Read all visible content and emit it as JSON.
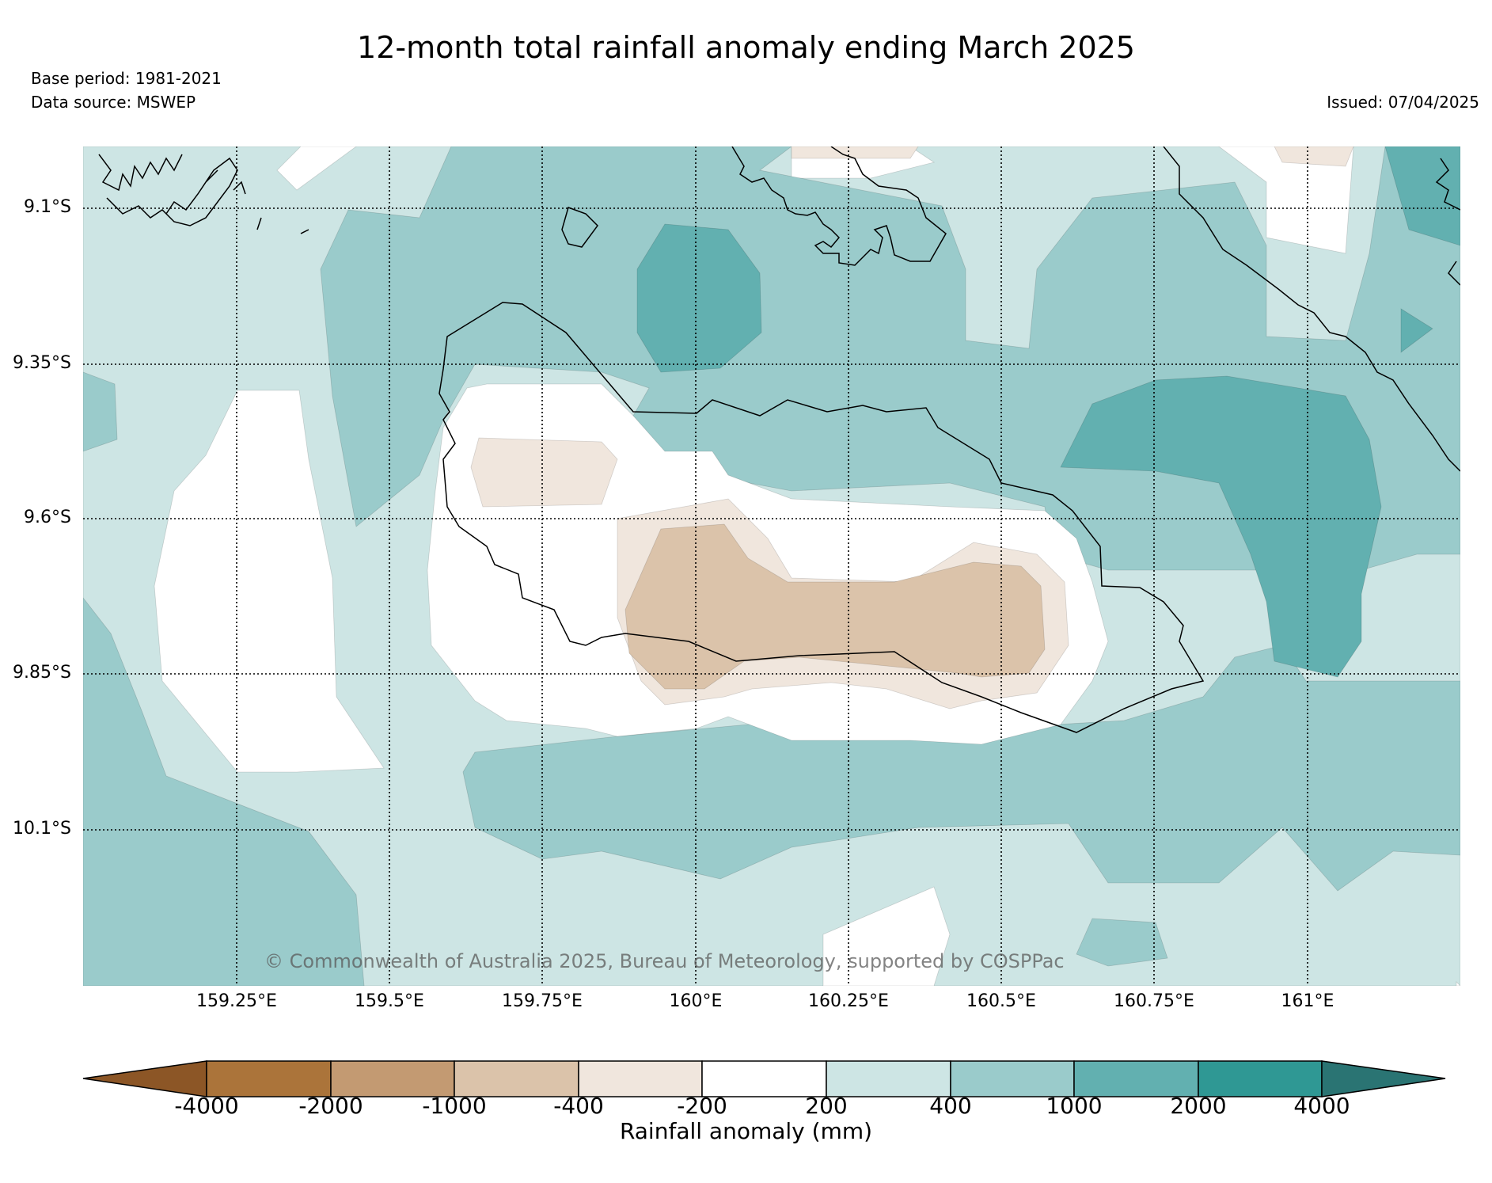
{
  "title": "12-month total rainfall anomaly ending March 2025",
  "base_period": "Base period: 1981-2021",
  "data_source": "Data source: MSWEP",
  "issued": "Issued: 07/04/2025",
  "copyright": "© Commonwealth of Australia 2025, Bureau of Meteorology, supported by COSPPac",
  "lat_labels": [
    "9.1°S",
    "9.35°S",
    "9.6°S",
    "9.85°S",
    "10.1°S"
  ],
  "lon_labels": [
    "159.25°E",
    "159.5°E",
    "159.75°E",
    "160°E",
    "160.25°E",
    "160.5°E",
    "160.75°E",
    "161°E"
  ],
  "colorbar": {
    "title": "Rainfall anomaly (mm)",
    "ticks": [
      "-4000",
      "-2000",
      "-1000",
      "-400",
      "-200",
      "200",
      "400",
      "1000",
      "2000",
      "4000"
    ],
    "colors": [
      "#8c5626",
      "#ab743a",
      "#c39a72",
      "#dbc3aa",
      "#f0e6dd",
      "#ffffff",
      "#cde5e4",
      "#9acbcb",
      "#62b0b0",
      "#2f9894",
      "#2a7473"
    ]
  },
  "map_colors": {
    "c200_400": "#cde5e4",
    "c400_1000": "#9acbcb",
    "c1000_2000": "#62b0b0",
    "n200_400": "#f0e6dd",
    "n400_1000": "#dbc3aa",
    "zero": "#ffffff"
  }
}
